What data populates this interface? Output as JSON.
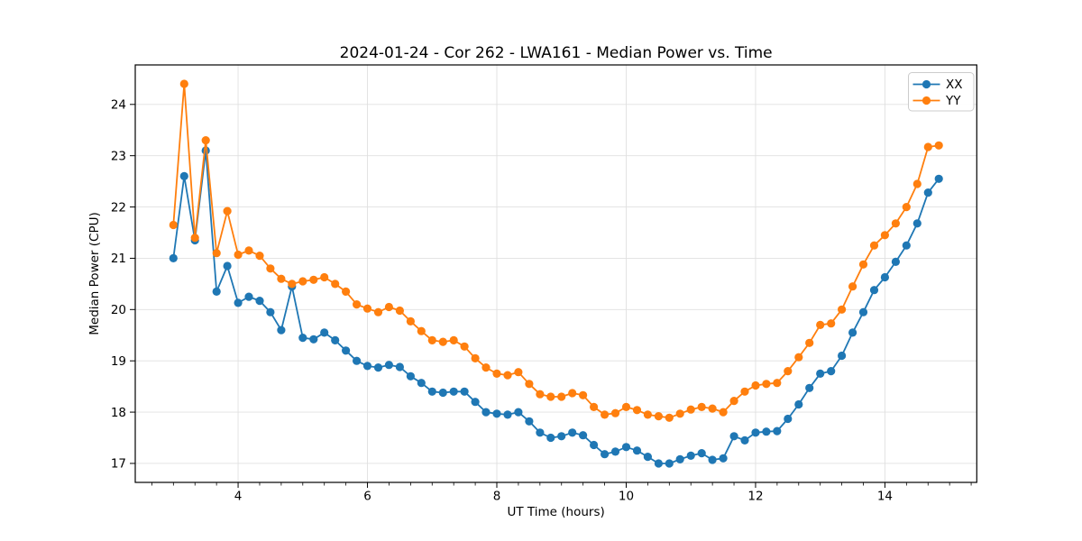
{
  "figure": {
    "title": "2024-01-24 - Cor 262 - LWA161 - Median Power vs. Time",
    "xlabel": "UT Time (hours)",
    "ylabel": "Median Power (CPU)",
    "background": "#ffffff",
    "grid_color": "#e0e0e0",
    "spine_color": "#000000",
    "text_color": "#000000",
    "legend": {
      "position": "upper right",
      "entries": [
        {
          "label": "XX",
          "color": "#1f77b4"
        },
        {
          "label": "YY",
          "color": "#ff7f0e"
        }
      ]
    }
  },
  "chart_data": {
    "type": "line",
    "title": "2024-01-24 - Cor 262 - LWA161 - Median Power vs. Time",
    "xlabel": "UT Time (hours)",
    "ylabel": "Median Power (CPU)",
    "grid": true,
    "legend_position": "upper right",
    "xlim": [
      2.41,
      15.42
    ],
    "ylim": [
      16.63,
      24.77
    ],
    "xticks": [
      4,
      6,
      8,
      10,
      12,
      14
    ],
    "xtick_labels": [
      "4",
      "6",
      "8",
      "10",
      "12",
      "14"
    ],
    "x_minor_step": 0.3333,
    "yticks": [
      17,
      18,
      19,
      20,
      21,
      22,
      23,
      24
    ],
    "ytick_labels": [
      "17",
      "18",
      "19",
      "20",
      "21",
      "22",
      "23",
      "24"
    ],
    "x": [
      3.0,
      3.167,
      3.333,
      3.5,
      3.667,
      3.833,
      4.0,
      4.167,
      4.333,
      4.5,
      4.667,
      4.833,
      5.0,
      5.167,
      5.333,
      5.5,
      5.667,
      5.833,
      6.0,
      6.167,
      6.333,
      6.5,
      6.667,
      6.833,
      7.0,
      7.167,
      7.333,
      7.5,
      7.667,
      7.833,
      8.0,
      8.167,
      8.333,
      8.5,
      8.667,
      8.833,
      9.0,
      9.167,
      9.333,
      9.5,
      9.667,
      9.833,
      10.0,
      10.167,
      10.333,
      10.5,
      10.667,
      10.833,
      11.0,
      11.167,
      11.333,
      11.5,
      11.667,
      11.833,
      12.0,
      12.167,
      12.333,
      12.5,
      12.667,
      12.833,
      13.0,
      13.167,
      13.333,
      13.5,
      13.667,
      13.833,
      14.0,
      14.167,
      14.333,
      14.5,
      14.667,
      14.833
    ],
    "series": [
      {
        "name": "XX",
        "color": "#1f77b4",
        "marker": "o",
        "values": [
          21.0,
          22.6,
          21.35,
          23.1,
          20.35,
          20.85,
          20.13,
          20.25,
          20.17,
          19.95,
          19.6,
          20.45,
          19.45,
          19.42,
          19.55,
          19.4,
          19.2,
          19.0,
          18.9,
          18.87,
          18.92,
          18.88,
          18.7,
          18.57,
          18.4,
          18.38,
          18.4,
          18.4,
          18.2,
          18.0,
          17.97,
          17.95,
          18.0,
          17.82,
          17.6,
          17.5,
          17.53,
          17.6,
          17.55,
          17.36,
          17.18,
          17.23,
          17.32,
          17.25,
          17.13,
          17.0,
          17.0,
          17.08,
          17.15,
          17.2,
          17.07,
          17.1,
          17.53,
          17.45,
          17.6,
          17.62,
          17.63,
          17.87,
          18.15,
          18.47,
          18.75,
          18.8,
          19.1,
          19.55,
          19.95,
          20.38,
          20.63,
          20.93,
          21.25,
          21.68,
          22.28,
          22.55
        ]
      },
      {
        "name": "YY",
        "color": "#ff7f0e",
        "marker": "o",
        "values": [
          21.65,
          24.4,
          21.4,
          23.3,
          21.1,
          21.92,
          21.07,
          21.15,
          21.05,
          20.8,
          20.6,
          20.5,
          20.55,
          20.58,
          20.63,
          20.5,
          20.35,
          20.1,
          20.02,
          19.95,
          20.05,
          19.98,
          19.77,
          19.58,
          19.4,
          19.37,
          19.4,
          19.28,
          19.05,
          18.87,
          18.75,
          18.72,
          18.78,
          18.55,
          18.35,
          18.3,
          18.3,
          18.37,
          18.33,
          18.1,
          17.95,
          17.98,
          18.1,
          18.04,
          17.95,
          17.92,
          17.89,
          17.97,
          18.05,
          18.1,
          18.07,
          18.0,
          18.22,
          18.4,
          18.52,
          18.55,
          18.57,
          18.8,
          19.07,
          19.35,
          19.7,
          19.73,
          20.0,
          20.45,
          20.88,
          21.25,
          21.45,
          21.68,
          22.0,
          22.45,
          23.17,
          23.2
        ]
      }
    ]
  }
}
